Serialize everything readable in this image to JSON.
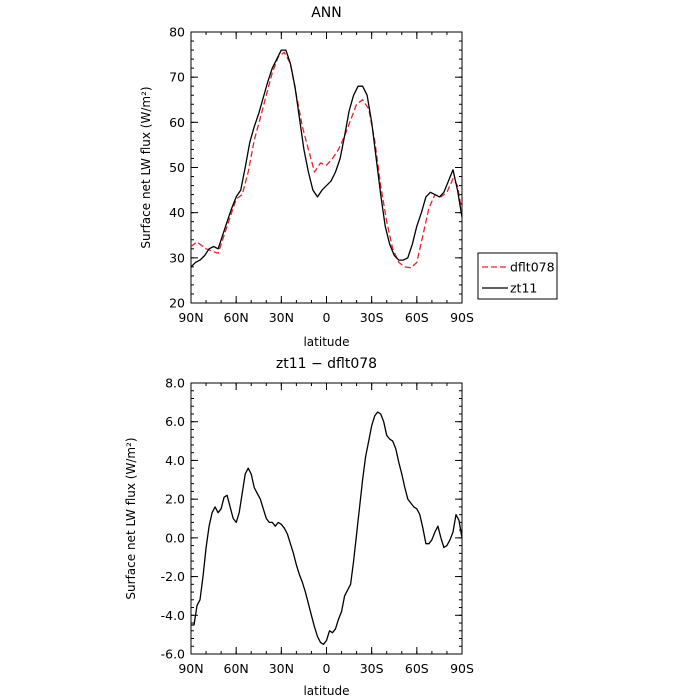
{
  "chart_data": [
    {
      "type": "line",
      "title": "ANN",
      "xlabel": "latitude",
      "ylabel": "Surface net LW flux (W/m²)",
      "xlim": [
        90,
        -90
      ],
      "ylim": [
        20,
        80
      ],
      "xticks": [
        90,
        60,
        30,
        0,
        -30,
        -60,
        -90
      ],
      "xtick_labels": [
        "90N",
        "60N",
        "30N",
        "0",
        "30S",
        "60S",
        "90S"
      ],
      "yticks": [
        20,
        30,
        40,
        50,
        60,
        70,
        80
      ],
      "ytick_labels": [
        "20",
        "30",
        "40",
        "50",
        "60",
        "70",
        "80"
      ],
      "legend": "right",
      "series": [
        {
          "name": "dflt078",
          "color": "#e8202a",
          "dash": "dashed",
          "x": [
            90,
            86,
            80,
            76,
            72,
            68,
            64,
            60,
            56,
            52,
            48,
            44,
            40,
            36,
            32,
            28,
            24,
            20,
            16,
            12,
            8,
            4,
            0,
            -4,
            -8,
            -12,
            -16,
            -20,
            -24,
            -28,
            -32,
            -36,
            -40,
            -44,
            -48,
            -52,
            -56,
            -60,
            -64,
            -68,
            -72,
            -76,
            -80,
            -84,
            -87,
            -90
          ],
          "y": [
            32.5,
            33.5,
            32,
            31.5,
            31,
            35,
            39,
            43,
            44,
            49,
            56,
            61,
            66,
            71,
            74.5,
            75.5,
            73,
            66,
            59,
            54,
            49,
            51,
            50.5,
            52,
            54,
            57,
            60.5,
            64,
            65,
            63,
            56,
            46,
            38,
            32,
            29,
            28,
            27.8,
            29,
            35,
            41,
            44,
            43.5,
            44.5,
            47.5,
            46,
            40
          ]
        },
        {
          "name": "zt11",
          "color": "#000000",
          "dash": "solid",
          "x": [
            90,
            87,
            84,
            81,
            78,
            75,
            72,
            69,
            66,
            63,
            60,
            57,
            54,
            51,
            48,
            45,
            42,
            39,
            36,
            33,
            30,
            27,
            24,
            21,
            18,
            15,
            12,
            9,
            6,
            3,
            0,
            -3,
            -6,
            -9,
            -12,
            -15,
            -18,
            -21,
            -24,
            -27,
            -30,
            -33,
            -36,
            -39,
            -42,
            -45,
            -48,
            -51,
            -54,
            -57,
            -60,
            -63,
            -66,
            -69,
            -72,
            -75,
            -78,
            -81,
            -84,
            -87,
            -90
          ],
          "y": [
            28,
            29,
            29.5,
            30.5,
            32,
            32.5,
            32,
            35,
            38,
            41,
            43.5,
            45,
            50,
            55.5,
            59,
            62,
            65.5,
            69,
            72,
            74,
            76,
            76,
            73,
            68,
            61,
            54,
            49,
            45,
            43.5,
            45,
            46,
            47,
            49,
            52,
            57,
            62.5,
            66,
            68,
            68,
            66,
            60,
            52,
            44,
            37,
            33,
            30.5,
            29.5,
            29.5,
            30,
            33,
            37,
            40,
            43.5,
            44.5,
            44,
            43.5,
            44.5,
            47,
            49.5,
            45,
            39
          ]
        }
      ]
    },
    {
      "type": "line",
      "title": "zt11 − dflt078",
      "xlabel": "latitude",
      "ylabel": "Surface net LW flux (W/m²)",
      "xlim": [
        90,
        -90
      ],
      "ylim": [
        -6,
        8
      ],
      "xticks": [
        90,
        60,
        30,
        0,
        -30,
        -60,
        -90
      ],
      "xtick_labels": [
        "90N",
        "60N",
        "30N",
        "0",
        "30S",
        "60S",
        "90S"
      ],
      "yticks": [
        -6,
        -4,
        -2,
        0,
        2,
        4,
        6,
        8
      ],
      "ytick_labels": [
        "-6.0",
        "-4.0",
        "-2.0",
        "0.0",
        "2.0",
        "4.0",
        "6.0",
        "8.0"
      ],
      "series": [
        {
          "color": "#000000",
          "dash": "solid",
          "x": [
            90,
            88,
            86,
            84,
            82,
            80,
            78,
            76,
            74,
            72,
            70,
            68,
            66,
            64,
            62,
            60,
            58,
            56,
            54,
            52,
            50,
            48,
            46,
            44,
            42,
            40,
            38,
            36,
            34,
            32,
            30,
            28,
            26,
            24,
            22,
            20,
            18,
            16,
            14,
            12,
            10,
            8,
            6,
            4,
            2,
            0,
            -2,
            -4,
            -6,
            -8,
            -10,
            -12,
            -14,
            -16,
            -18,
            -20,
            -22,
            -24,
            -26,
            -28,
            -30,
            -32,
            -34,
            -36,
            -38,
            -40,
            -42,
            -44,
            -46,
            -48,
            -50,
            -52,
            -54,
            -56,
            -58,
            -60,
            -62,
            -64,
            -66,
            -68,
            -70,
            -72,
            -74,
            -76,
            -78,
            -80,
            -82,
            -84,
            -86,
            -88,
            -90
          ],
          "y": [
            -4.5,
            -4.5,
            -3.5,
            -3.2,
            -2.0,
            -0.5,
            0.6,
            1.3,
            1.6,
            1.3,
            1.5,
            2.1,
            2.2,
            1.6,
            1.0,
            0.8,
            1.3,
            2.3,
            3.3,
            3.6,
            3.3,
            2.6,
            2.3,
            2.0,
            1.5,
            1.0,
            0.8,
            0.8,
            0.6,
            0.8,
            0.7,
            0.5,
            0.2,
            -0.3,
            -0.8,
            -1.4,
            -1.9,
            -2.3,
            -2.8,
            -3.4,
            -4.0,
            -4.6,
            -5.1,
            -5.4,
            -5.5,
            -5.3,
            -4.8,
            -4.9,
            -4.7,
            -4.2,
            -3.8,
            -3.0,
            -2.7,
            -2.4,
            -1.2,
            0.2,
            1.6,
            3.0,
            4.2,
            5.0,
            5.8,
            6.3,
            6.5,
            6.4,
            6.0,
            5.3,
            5.1,
            5.0,
            4.6,
            3.9,
            3.3,
            2.6,
            2.0,
            1.8,
            1.6,
            1.5,
            1.2,
            0.5,
            -0.3,
            -0.3,
            -0.1,
            0.3,
            0.6,
            0.0,
            -0.5,
            -0.4,
            -0.1,
            0.3,
            1.2,
            0.9,
            0.0
          ]
        }
      ]
    }
  ]
}
